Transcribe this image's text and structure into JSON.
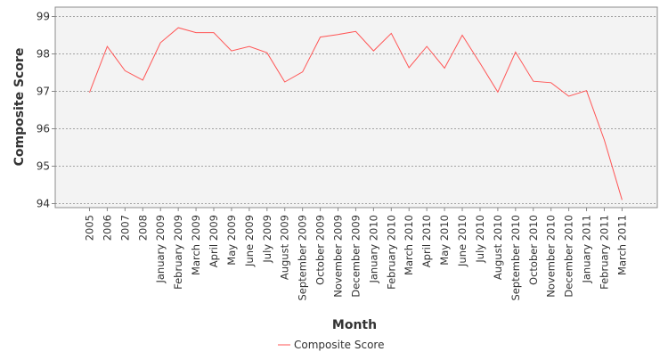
{
  "chart_data": {
    "type": "line",
    "title": "",
    "xlabel": "Month",
    "ylabel": "Composite Score",
    "ylim": [
      93.8,
      99.2
    ],
    "yticks": [
      94,
      95,
      96,
      97,
      98,
      99
    ],
    "grid": true,
    "legend_position": "bottom",
    "categories": [
      "2005",
      "2006",
      "2007",
      "2008",
      "January 2009",
      "February 2009",
      "March 2009",
      "April 2009",
      "May 2009",
      "June 2009",
      "July 2009",
      "August 2009",
      "September 2009",
      "October 2009",
      "November 2009",
      "December 2009",
      "January 2010",
      "February 2010",
      "March 2010",
      "April 2010",
      "May 2010",
      "June 2010",
      "July 2010",
      "August 2010",
      "September 2010",
      "October 2010",
      "November 2010",
      "December 2010",
      "January 2011",
      "February 2011",
      "March 2011"
    ],
    "series": [
      {
        "name": "Composite Score",
        "color": "#ff5555",
        "values": [
          96.97,
          98.2,
          97.55,
          97.3,
          98.3,
          98.7,
          98.57,
          98.57,
          98.08,
          98.2,
          98.03,
          97.25,
          97.52,
          98.45,
          98.52,
          98.6,
          98.08,
          98.55,
          97.63,
          98.2,
          97.62,
          98.5,
          97.75,
          96.98,
          98.05,
          97.27,
          97.23,
          96.87,
          97.02,
          95.7,
          94.1
        ]
      }
    ]
  }
}
